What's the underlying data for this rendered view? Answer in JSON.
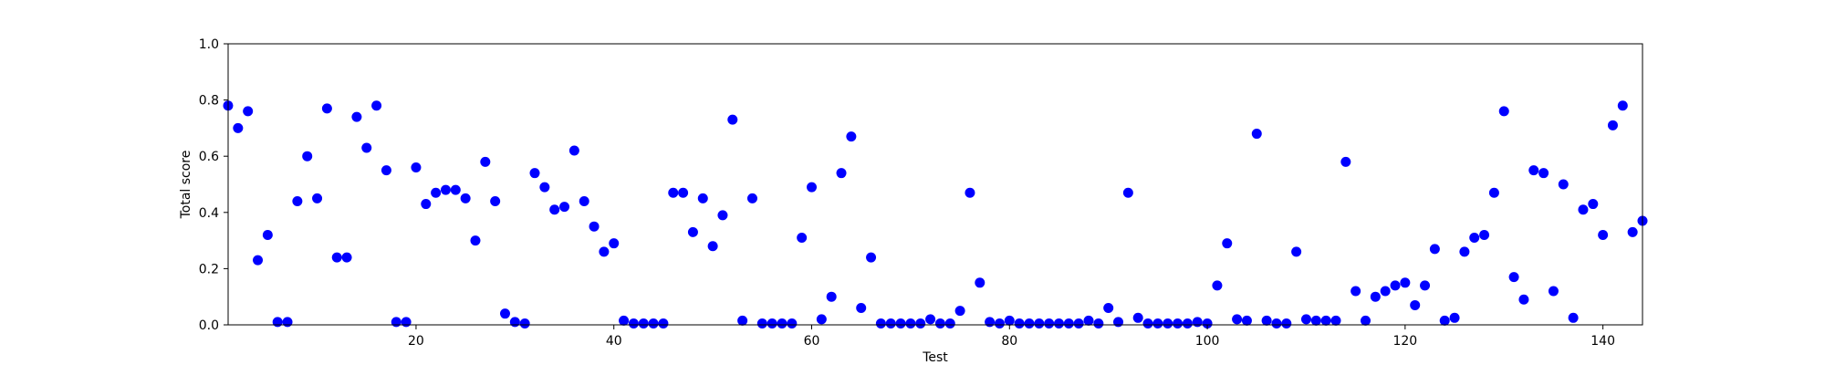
{
  "chart_data": {
    "type": "scatter",
    "title": "",
    "xlabel": "Test",
    "ylabel": "Total score",
    "xlim": [
      1,
      144
    ],
    "ylim": [
      0,
      1
    ],
    "xticks": [
      20,
      40,
      60,
      80,
      100,
      120,
      140
    ],
    "yticks": [
      0.0,
      0.2,
      0.4,
      0.6,
      0.8,
      1.0
    ],
    "grid": false,
    "legend": "none",
    "marker_color": "#0000ff",
    "series": [
      {
        "x": [
          1,
          2,
          3,
          4,
          5,
          6,
          7,
          8,
          9,
          10,
          11,
          12,
          13,
          14,
          15,
          16,
          17,
          18,
          19,
          20,
          21,
          22,
          23,
          24,
          25,
          26,
          27,
          28,
          29,
          30,
          31,
          32,
          33,
          34,
          35,
          36,
          37,
          38,
          39,
          40,
          41,
          42,
          43,
          44,
          45,
          46,
          47,
          48,
          49,
          50,
          51,
          52,
          53,
          54,
          55,
          56,
          57,
          58,
          59,
          60,
          61,
          62,
          63,
          64,
          65,
          66,
          67,
          68,
          69,
          70,
          71,
          72,
          73,
          74,
          75,
          76,
          77,
          78,
          79,
          80,
          81,
          82,
          83,
          84,
          85,
          86,
          87,
          88,
          89,
          90,
          91,
          92,
          93,
          94,
          95,
          96,
          97,
          98,
          99,
          100,
          101,
          102,
          103,
          104,
          105,
          106,
          107,
          108,
          109,
          110,
          111,
          112,
          113,
          114,
          115,
          116,
          117,
          118,
          119,
          120,
          121,
          122,
          123,
          124,
          125,
          126,
          127,
          128,
          129,
          130,
          131,
          132,
          133,
          134,
          135,
          136,
          137,
          138,
          139,
          140,
          141,
          142,
          143,
          144
        ],
        "y": [
          0.78,
          0.7,
          0.76,
          0.23,
          0.32,
          0.01,
          0.01,
          0.44,
          0.6,
          0.45,
          0.77,
          0.24,
          0.24,
          0.74,
          0.63,
          0.78,
          0.55,
          0.01,
          0.01,
          0.56,
          0.43,
          0.47,
          0.48,
          0.48,
          0.45,
          0.3,
          0.58,
          0.44,
          0.04,
          0.01,
          0.005,
          0.54,
          0.49,
          0.41,
          0.42,
          0.62,
          0.44,
          0.35,
          0.26,
          0.29,
          0.015,
          0.005,
          0.005,
          0.005,
          0.005,
          0.47,
          0.47,
          0.33,
          0.45,
          0.28,
          0.39,
          0.73,
          0.015,
          0.45,
          0.005,
          0.005,
          0.005,
          0.005,
          0.31,
          0.49,
          0.02,
          0.1,
          0.54,
          0.67,
          0.06,
          0.24,
          0.005,
          0.005,
          0.005,
          0.005,
          0.005,
          0.02,
          0.005,
          0.005,
          0.05,
          0.47,
          0.15,
          0.01,
          0.005,
          0.015,
          0.005,
          0.005,
          0.005,
          0.005,
          0.005,
          0.005,
          0.005,
          0.015,
          0.005,
          0.06,
          0.01,
          0.47,
          0.025,
          0.005,
          0.005,
          0.005,
          0.005,
          0.005,
          0.01,
          0.005,
          0.14,
          0.29,
          0.02,
          0.015,
          0.68,
          0.015,
          0.005,
          0.005,
          0.26,
          0.02,
          0.015,
          0.015,
          0.015,
          0.58,
          0.12,
          0.015,
          0.1,
          0.12,
          0.14,
          0.15,
          0.07,
          0.14,
          0.27,
          0.015,
          0.025,
          0.26,
          0.31,
          0.32,
          0.47,
          0.76,
          0.17,
          0.09,
          0.55,
          0.54,
          0.12,
          0.5,
          0.025,
          0.41,
          0.43,
          0.32,
          0.71,
          0.78,
          0.33,
          0.37
        ]
      }
    ]
  }
}
